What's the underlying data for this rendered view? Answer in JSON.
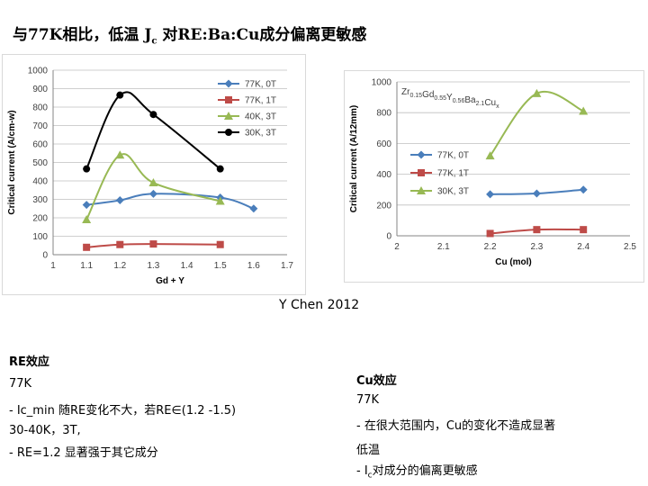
{
  "slide": {
    "title_main": "与77K相比，低温 J",
    "title_sub": "c",
    "title_tail": " 对RE:Ba:Cu成分偏离更敏感",
    "caption": "Y Chen 2012",
    "left_section": {
      "heading": "RE效应",
      "line1": "77K",
      "line2": "-   Ic_min 随RE变化不大，若RE∈(1.2 -1.5)",
      "line3": "30-40K，3T,",
      "line4": "-   RE=1.2 显著强于其它成分"
    },
    "right_section": {
      "heading": "Cu效应",
      "line1": "77K",
      "line2": "-  在很大范围内，Cu的变化不造成显著",
      "line3": "低温",
      "line4_prefix": "-  I",
      "line4_sub": "c",
      "line4_suffix": "对成分的偏离更敏感"
    }
  },
  "chart_data": [
    {
      "type": "line",
      "xlabel": "Gd + Y",
      "ylabel": "Critical current  (A/cm-w)",
      "xlim": [
        1,
        1.7
      ],
      "ylim": [
        0,
        1000
      ],
      "xticks": [
        "1",
        "1.1",
        "1.2",
        "1.3",
        "1.4",
        "1.5",
        "1.6",
        "1.7"
      ],
      "yticks": [
        "0",
        "100",
        "200",
        "300",
        "400",
        "500",
        "600",
        "700",
        "800",
        "900",
        "1000"
      ],
      "grid": true,
      "legend_position": "top-right",
      "series": [
        {
          "name": "77K, 0T",
          "color": "#4a7ebb",
          "marker": "diamond",
          "x": [
            1.1,
            1.2,
            1.3,
            1.5,
            1.6
          ],
          "y": [
            270,
            295,
            330,
            310,
            250
          ]
        },
        {
          "name": "77K, 1T",
          "color": "#be4b48",
          "marker": "square",
          "x": [
            1.1,
            1.2,
            1.3,
            1.5
          ],
          "y": [
            40,
            55,
            58,
            55
          ]
        },
        {
          "name": "40K, 3T",
          "color": "#98b954",
          "marker": "triangle",
          "x": [
            1.1,
            1.2,
            1.3,
            1.5
          ],
          "y": [
            190,
            540,
            390,
            290
          ]
        },
        {
          "name": "30K, 3T",
          "color": "#000000",
          "marker": "circle",
          "x": [
            1.1,
            1.2,
            1.3,
            1.5
          ],
          "y": [
            465,
            865,
            760,
            465
          ]
        }
      ]
    },
    {
      "type": "line",
      "title": "Zr0.15Gd0.55Y0.56Ba2.1Cux",
      "title_parts": [
        [
          "Zr",
          "0.15"
        ],
        [
          "Gd",
          "0.55"
        ],
        [
          "Y",
          "0.56"
        ],
        [
          "Ba",
          "2.1"
        ],
        [
          "Cu",
          "x"
        ]
      ],
      "xlabel": "Cu (mol)",
      "ylabel": "Critical current  (A/12mm)",
      "xlim": [
        2,
        2.5
      ],
      "ylim": [
        0,
        1000
      ],
      "xticks": [
        "2",
        "2.1",
        "2.2",
        "2.3",
        "2.4",
        "2.5"
      ],
      "yticks": [
        "0",
        "200",
        "400",
        "600",
        "800",
        "1000"
      ],
      "grid": true,
      "legend_position": "center-left",
      "series": [
        {
          "name": "77K, 0T",
          "color": "#4a7ebb",
          "marker": "diamond",
          "x": [
            2.2,
            2.3,
            2.4
          ],
          "y": [
            270,
            275,
            300
          ]
        },
        {
          "name": "77K, 1T",
          "color": "#be4b48",
          "marker": "square",
          "x": [
            2.2,
            2.3,
            2.4
          ],
          "y": [
            15,
            40,
            40
          ]
        },
        {
          "name": "30K, 3T",
          "color": "#98b954",
          "marker": "triangle",
          "x": [
            2.2,
            2.3,
            2.4
          ],
          "y": [
            520,
            925,
            810
          ]
        }
      ]
    }
  ]
}
